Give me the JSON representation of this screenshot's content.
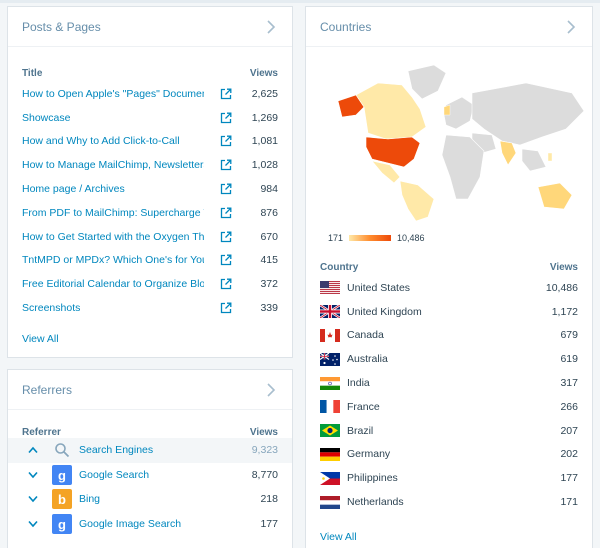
{
  "posts": {
    "title": "Posts & Pages",
    "col_title": "Title",
    "col_views": "Views",
    "rows": [
      {
        "title": "How to Open Apple's \"Pages\" Documents",
        "views": "2,625"
      },
      {
        "title": "Showcase",
        "views": "1,269"
      },
      {
        "title": "How and Why to Add Click-to-Call",
        "views": "1,081"
      },
      {
        "title": "How to Manage MailChimp, Newsletters, a",
        "views": "1,028"
      },
      {
        "title": "Home page / Archives",
        "views": "984"
      },
      {
        "title": "From PDF to MailChimp: Supercharge You",
        "views": "876"
      },
      {
        "title": "How to Get Started with the Oxygen Them",
        "views": "670"
      },
      {
        "title": "TntMPD or MPDx? Which One's for You? I",
        "views": "415"
      },
      {
        "title": "Free Editorial Calendar to Organize Blog-o",
        "views": "372"
      },
      {
        "title": "Screenshots",
        "views": "339"
      }
    ],
    "view_all": "View All"
  },
  "referrers": {
    "title": "Referrers",
    "col_title": "Referrer",
    "col_views": "Views",
    "rows": [
      {
        "name": "Search Engines",
        "views": "9,323",
        "icon": "search-icon",
        "expanded": true
      },
      {
        "name": "Google Search",
        "views": "8,770",
        "icon": "google-icon",
        "expanded": false
      },
      {
        "name": "Bing",
        "views": "218",
        "icon": "bing-icon",
        "expanded": false
      },
      {
        "name": "Google Image Search",
        "views": "177",
        "icon": "google-icon",
        "expanded": false
      }
    ]
  },
  "countries": {
    "title": "Countries",
    "legend_min": "171",
    "legend_max": "10,486",
    "col_title": "Country",
    "col_views": "Views",
    "rows": [
      {
        "name": "United States",
        "views": "10,486",
        "flag": "us"
      },
      {
        "name": "United Kingdom",
        "views": "1,172",
        "flag": "gb"
      },
      {
        "name": "Canada",
        "views": "679",
        "flag": "ca"
      },
      {
        "name": "Australia",
        "views": "619",
        "flag": "au"
      },
      {
        "name": "India",
        "views": "317",
        "flag": "in"
      },
      {
        "name": "France",
        "views": "266",
        "flag": "fr"
      },
      {
        "name": "Brazil",
        "views": "207",
        "flag": "br"
      },
      {
        "name": "Germany",
        "views": "202",
        "flag": "de"
      },
      {
        "name": "Philippines",
        "views": "177",
        "flag": "ph"
      },
      {
        "name": "Netherlands",
        "views": "171",
        "flag": "nl"
      }
    ],
    "view_all": "View All"
  },
  "colors": {
    "link": "#0087be",
    "accent_low": "#ffe9a8",
    "accent_high": "#ed4a0a"
  }
}
